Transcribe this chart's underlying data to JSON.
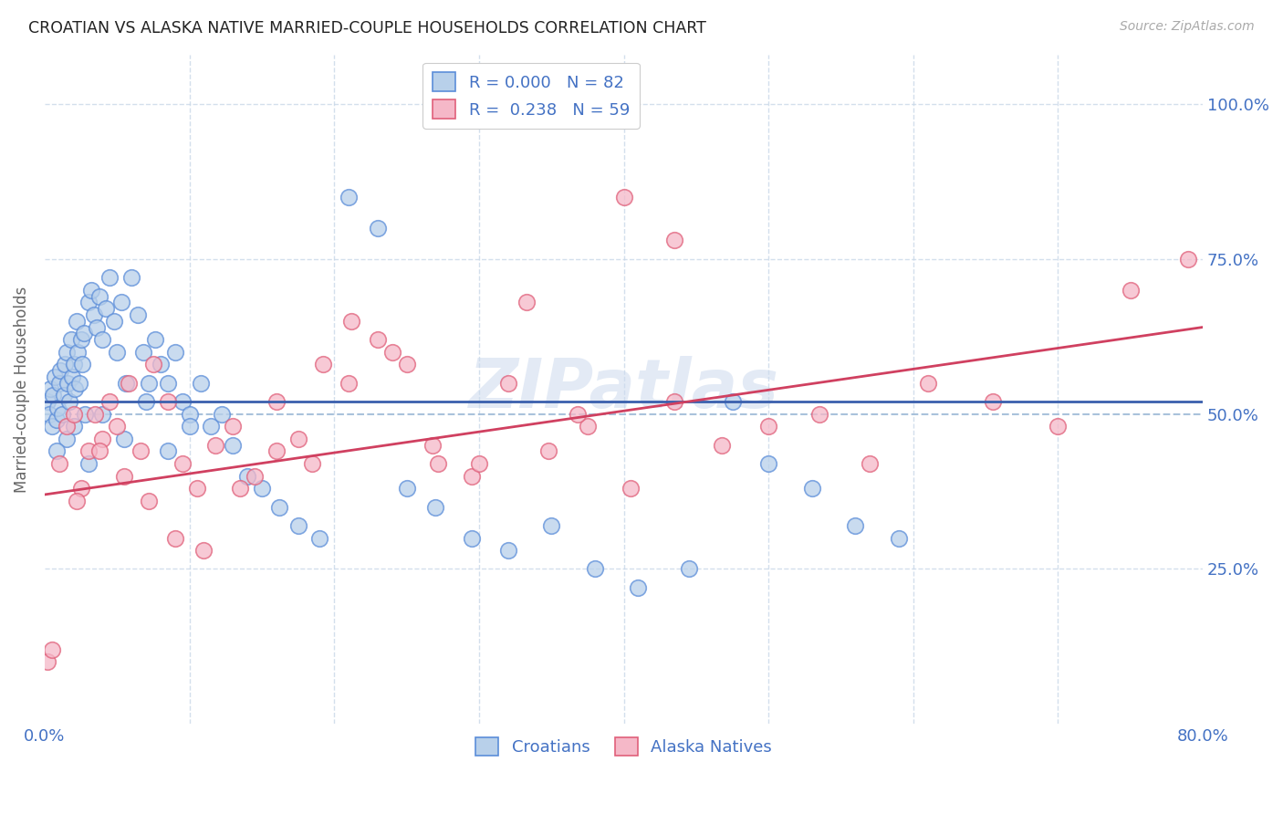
{
  "title": "CROATIAN VS ALASKA NATIVE MARRIED-COUPLE HOUSEHOLDS CORRELATION CHART",
  "source": "Source: ZipAtlas.com",
  "ylabel": "Married-couple Households",
  "xmin": 0.0,
  "xmax": 0.8,
  "ymin": 0.0,
  "ymax": 1.08,
  "color_croatian_fill": "#b8d0ea",
  "color_croatian_edge": "#5b8dd9",
  "color_alaska_fill": "#f5b8c8",
  "color_alaska_edge": "#e0607a",
  "color_line_croatian": "#3a5fad",
  "color_line_alaska": "#d04060",
  "color_dashed": "#a0bcd8",
  "color_grid": "#c8d8e8",
  "color_axis_text": "#4472c4",
  "color_title": "#222222",
  "color_source": "#aaaaaa",
  "color_ylabel": "#666666",
  "watermark": "ZIPatlas",
  "croatian_x": [
    0.002,
    0.003,
    0.004,
    0.005,
    0.006,
    0.007,
    0.008,
    0.009,
    0.01,
    0.011,
    0.012,
    0.013,
    0.014,
    0.015,
    0.016,
    0.017,
    0.018,
    0.019,
    0.02,
    0.021,
    0.022,
    0.023,
    0.024,
    0.025,
    0.026,
    0.027,
    0.028,
    0.03,
    0.032,
    0.034,
    0.036,
    0.038,
    0.04,
    0.042,
    0.045,
    0.048,
    0.05,
    0.053,
    0.056,
    0.06,
    0.064,
    0.068,
    0.072,
    0.076,
    0.08,
    0.085,
    0.09,
    0.095,
    0.1,
    0.108,
    0.115,
    0.122,
    0.13,
    0.14,
    0.15,
    0.162,
    0.175,
    0.19,
    0.21,
    0.23,
    0.25,
    0.27,
    0.295,
    0.32,
    0.35,
    0.38,
    0.41,
    0.445,
    0.475,
    0.5,
    0.53,
    0.56,
    0.59,
    0.015,
    0.008,
    0.02,
    0.03,
    0.04,
    0.055,
    0.07,
    0.085,
    0.1
  ],
  "croatian_y": [
    0.52,
    0.5,
    0.54,
    0.48,
    0.53,
    0.56,
    0.49,
    0.51,
    0.55,
    0.57,
    0.5,
    0.53,
    0.58,
    0.6,
    0.55,
    0.52,
    0.62,
    0.56,
    0.58,
    0.54,
    0.65,
    0.6,
    0.55,
    0.62,
    0.58,
    0.63,
    0.5,
    0.68,
    0.7,
    0.66,
    0.64,
    0.69,
    0.62,
    0.67,
    0.72,
    0.65,
    0.6,
    0.68,
    0.55,
    0.72,
    0.66,
    0.6,
    0.55,
    0.62,
    0.58,
    0.55,
    0.6,
    0.52,
    0.5,
    0.55,
    0.48,
    0.5,
    0.45,
    0.4,
    0.38,
    0.35,
    0.32,
    0.3,
    0.85,
    0.8,
    0.38,
    0.35,
    0.3,
    0.28,
    0.32,
    0.25,
    0.22,
    0.25,
    0.52,
    0.42,
    0.38,
    0.32,
    0.3,
    0.46,
    0.44,
    0.48,
    0.42,
    0.5,
    0.46,
    0.52,
    0.44,
    0.48
  ],
  "alaska_x": [
    0.002,
    0.005,
    0.01,
    0.015,
    0.02,
    0.025,
    0.03,
    0.035,
    0.04,
    0.045,
    0.05,
    0.058,
    0.066,
    0.075,
    0.085,
    0.095,
    0.105,
    0.118,
    0.13,
    0.145,
    0.16,
    0.175,
    0.192,
    0.21,
    0.23,
    0.25,
    0.272,
    0.295,
    0.32,
    0.348,
    0.375,
    0.405,
    0.435,
    0.468,
    0.5,
    0.535,
    0.57,
    0.61,
    0.655,
    0.7,
    0.75,
    0.79,
    0.022,
    0.038,
    0.055,
    0.072,
    0.09,
    0.11,
    0.135,
    0.16,
    0.185,
    0.212,
    0.24,
    0.268,
    0.3,
    0.333,
    0.368,
    0.4,
    0.435
  ],
  "alaska_y": [
    0.1,
    0.12,
    0.42,
    0.48,
    0.5,
    0.38,
    0.44,
    0.5,
    0.46,
    0.52,
    0.48,
    0.55,
    0.44,
    0.58,
    0.52,
    0.42,
    0.38,
    0.45,
    0.48,
    0.4,
    0.52,
    0.46,
    0.58,
    0.55,
    0.62,
    0.58,
    0.42,
    0.4,
    0.55,
    0.44,
    0.48,
    0.38,
    0.52,
    0.45,
    0.48,
    0.5,
    0.42,
    0.55,
    0.52,
    0.48,
    0.7,
    0.75,
    0.36,
    0.44,
    0.4,
    0.36,
    0.3,
    0.28,
    0.38,
    0.44,
    0.42,
    0.65,
    0.6,
    0.45,
    0.42,
    0.68,
    0.5,
    0.85,
    0.78
  ]
}
